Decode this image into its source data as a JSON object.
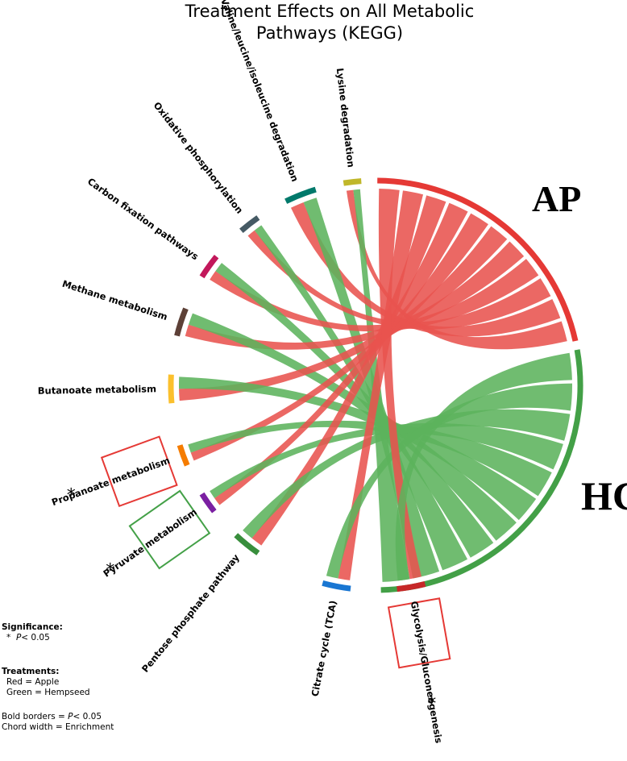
{
  "title_line1": "Treatment Effects on All Metabolic",
  "title_line2": "Pathways (KEGG)",
  "groups": [
    {
      "label": "AP",
      "color": "#e53935"
    },
    {
      "label": "HC",
      "color": "#43a047"
    }
  ],
  "pathways": [
    {
      "label": "Lysine degradation",
      "color": "#c0b72a",
      "significant": false
    },
    {
      "label": "Valine/leucine/isoleucine degradation",
      "color": "#00796b",
      "significant": false
    },
    {
      "label": "Oxidative phosphorylation",
      "color": "#455a64",
      "significant": false
    },
    {
      "label": "Carbon fixation pathways",
      "color": "#c2185b",
      "significant": false
    },
    {
      "label": "Methane metabolism",
      "color": "#5d4037",
      "significant": false
    },
    {
      "label": "Butanoate metabolism",
      "color": "#fbc02d",
      "significant": false
    },
    {
      "label": "Propanoate metabolism",
      "color": "#f57c00",
      "significant": true,
      "border_color": "#e53935"
    },
    {
      "label": "Pyruvate metabolism",
      "color": "#7b1fa2",
      "significant": true,
      "border_color": "#43a047"
    },
    {
      "label": "Pentose phosphate pathway",
      "color": "#388e3c",
      "significant": false
    },
    {
      "label": "Citrate cycle (TCA)",
      "color": "#1976d2",
      "significant": false
    },
    {
      "label": "Glycolysis/Gluconeogenesis",
      "color": "#c62828",
      "significant": true,
      "border_color": "#e53935"
    }
  ],
  "chord_colors": {
    "AP": "#e8534f",
    "HC": "#5cb35c"
  },
  "significance_marker": "*",
  "legend": {
    "significance_title": "Significance:",
    "significance_star": "*",
    "significance_p": "P",
    "significance_rest": "< 0.05",
    "treatments_title": "Treatments:",
    "red": "Red = Apple",
    "green": "Green = Hempseed",
    "bold_prefix": "Bold borders = ",
    "bold_p": "P",
    "bold_rest": "< 0.05",
    "chord_width": "Chord width = Enrichment"
  }
}
